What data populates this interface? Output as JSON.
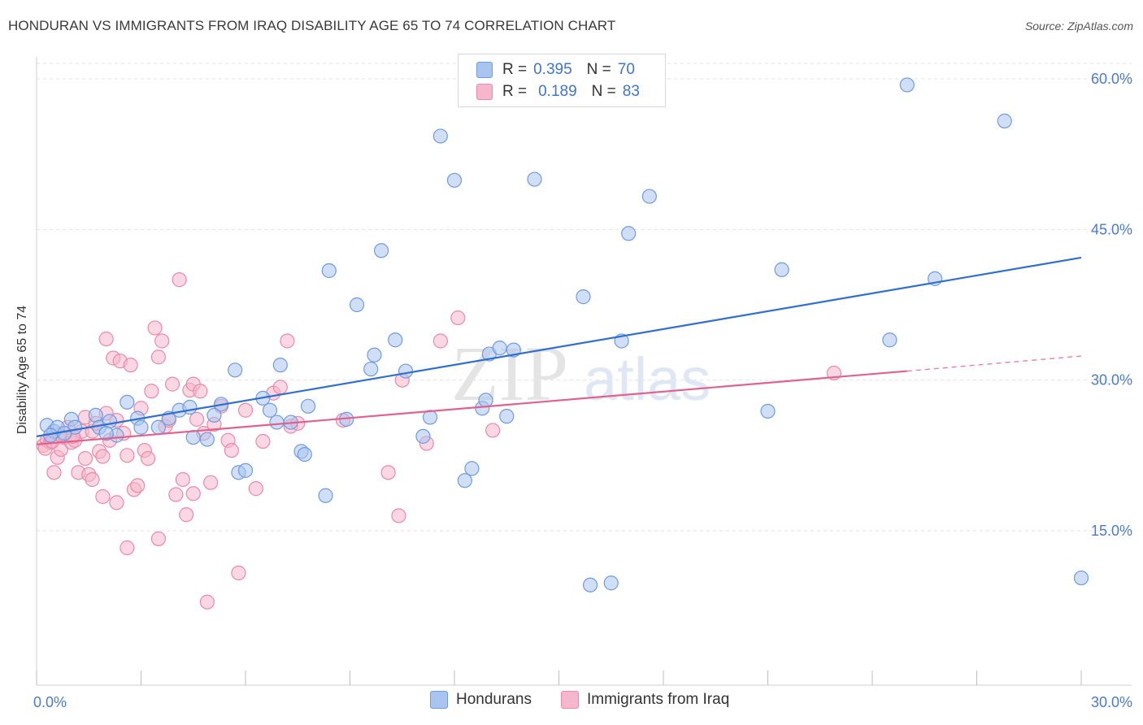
{
  "header": {
    "title": "HONDURAN VS IMMIGRANTS FROM IRAQ DISABILITY AGE 65 TO 74 CORRELATION CHART",
    "source": "Source: ZipAtlas.com"
  },
  "watermark": {
    "part1": "ZIP",
    "part2": "atlas"
  },
  "legend_top": {
    "rows": [
      {
        "r_label": "R =",
        "r_value": "0.395",
        "n_label": "N =",
        "n_value": "70"
      },
      {
        "r_label": "R =",
        "r_value": "0.189",
        "n_label": "N =",
        "n_value": "83"
      }
    ]
  },
  "legend_bottom": {
    "items": [
      {
        "label": "Hondurans"
      },
      {
        "label": "Immigrants from Iraq"
      }
    ]
  },
  "colors": {
    "hondurans_fill": "#a9c4ee",
    "hondurans_stroke": "#6f9be0",
    "hondurans_line": "#2f6fd0",
    "iraq_fill": "#f6b6cb",
    "iraq_stroke": "#e98aa9",
    "iraq_line": "#e0628f",
    "tick_text": "#4a7bd0",
    "grid": "#e2e2e2"
  },
  "chart_data": {
    "type": "scatter",
    "title": "HONDURAN VS IMMIGRANTS FROM IRAQ DISABILITY AGE 65 TO 74 CORRELATION CHART",
    "xlabel": "",
    "ylabel": "Disability Age 65 to 74",
    "xlim": [
      0,
      30
    ],
    "ylim": [
      0,
      63
    ],
    "x_tick_labels": [
      "0.0%",
      "30.0%"
    ],
    "y_ticks": [
      15,
      30,
      45,
      60
    ],
    "y_tick_labels": [
      "15.0%",
      "30.0%",
      "45.0%",
      "60.0%"
    ],
    "grid": true,
    "legend_position": "top-center",
    "series": [
      {
        "name": "Hondurans",
        "r": 0.395,
        "n": 70,
        "trend": {
          "x": [
            0,
            30
          ],
          "y": [
            24.4,
            42.2
          ],
          "dashed_from": null
        },
        "points": [
          [
            0.3,
            25.5
          ],
          [
            0.5,
            24.9
          ],
          [
            0.6,
            25.3
          ],
          [
            1.0,
            26.1
          ],
          [
            1.1,
            25.3
          ],
          [
            1.7,
            26.5
          ],
          [
            1.8,
            25.3
          ],
          [
            2.1,
            25.9
          ],
          [
            2.3,
            24.5
          ],
          [
            2.6,
            27.8
          ],
          [
            2.9,
            26.2
          ],
          [
            3.0,
            25.3
          ],
          [
            3.5,
            25.3
          ],
          [
            3.8,
            26.2
          ],
          [
            4.1,
            27.0
          ],
          [
            4.4,
            27.3
          ],
          [
            4.5,
            24.3
          ],
          [
            4.9,
            24.1
          ],
          [
            5.1,
            26.5
          ],
          [
            5.3,
            27.6
          ],
          [
            5.7,
            31.0
          ],
          [
            5.8,
            20.8
          ],
          [
            6.0,
            21.0
          ],
          [
            6.5,
            28.2
          ],
          [
            6.7,
            27.0
          ],
          [
            6.9,
            25.8
          ],
          [
            7.0,
            31.5
          ],
          [
            7.3,
            25.8
          ],
          [
            7.6,
            22.9
          ],
          [
            7.7,
            22.6
          ],
          [
            7.8,
            27.4
          ],
          [
            8.3,
            18.5
          ],
          [
            8.4,
            40.9
          ],
          [
            8.9,
            26.1
          ],
          [
            9.2,
            37.5
          ],
          [
            9.6,
            31.1
          ],
          [
            9.7,
            32.5
          ],
          [
            9.9,
            42.9
          ],
          [
            10.3,
            34.0
          ],
          [
            10.6,
            30.9
          ],
          [
            11.1,
            24.4
          ],
          [
            11.3,
            26.3
          ],
          [
            11.6,
            54.3
          ],
          [
            12.0,
            49.9
          ],
          [
            12.3,
            20.0
          ],
          [
            12.5,
            21.2
          ],
          [
            12.8,
            27.2
          ],
          [
            12.9,
            28.0
          ],
          [
            13.0,
            32.6
          ],
          [
            13.3,
            33.2
          ],
          [
            13.5,
            26.4
          ],
          [
            13.7,
            33.0
          ],
          [
            14.3,
            50.0
          ],
          [
            15.6,
            58.5
          ],
          [
            15.7,
            38.3
          ],
          [
            15.9,
            9.6
          ],
          [
            16.5,
            9.8
          ],
          [
            16.8,
            33.9
          ],
          [
            17.0,
            44.6
          ],
          [
            17.6,
            48.3
          ],
          [
            21.0,
            26.9
          ],
          [
            21.4,
            41.0
          ],
          [
            24.5,
            34.0
          ],
          [
            25.0,
            59.4
          ],
          [
            25.8,
            40.1
          ],
          [
            27.8,
            55.8
          ],
          [
            30.0,
            10.3
          ],
          [
            0.4,
            24.5
          ],
          [
            0.8,
            24.7
          ],
          [
            2.0,
            24.7
          ]
        ]
      },
      {
        "name": "Immigrants from Iraq",
        "r": 0.189,
        "n": 83,
        "trend": {
          "x": [
            0,
            25,
            30
          ],
          "y": [
            23.6,
            30.9,
            32.4
          ],
          "dashed_from": 25
        },
        "points": [
          [
            0.2,
            23.5
          ],
          [
            0.3,
            24.0
          ],
          [
            0.4,
            23.8
          ],
          [
            0.5,
            20.8
          ],
          [
            0.6,
            22.3
          ],
          [
            0.7,
            23.1
          ],
          [
            0.8,
            24.3
          ],
          [
            0.9,
            25.3
          ],
          [
            1.0,
            23.8
          ],
          [
            1.1,
            24.0
          ],
          [
            1.2,
            20.8
          ],
          [
            1.3,
            24.9
          ],
          [
            1.4,
            26.3
          ],
          [
            1.4,
            22.2
          ],
          [
            1.5,
            20.6
          ],
          [
            1.6,
            20.1
          ],
          [
            1.6,
            24.9
          ],
          [
            1.7,
            25.7
          ],
          [
            1.8,
            22.9
          ],
          [
            1.9,
            22.4
          ],
          [
            1.9,
            18.4
          ],
          [
            2.0,
            26.7
          ],
          [
            2.0,
            34.1
          ],
          [
            2.1,
            24.0
          ],
          [
            2.2,
            32.2
          ],
          [
            2.3,
            26.0
          ],
          [
            2.3,
            17.8
          ],
          [
            2.4,
            31.9
          ],
          [
            2.5,
            24.7
          ],
          [
            2.6,
            22.5
          ],
          [
            2.6,
            13.3
          ],
          [
            2.7,
            31.5
          ],
          [
            2.8,
            19.1
          ],
          [
            2.9,
            19.5
          ],
          [
            3.0,
            27.2
          ],
          [
            3.1,
            23.0
          ],
          [
            3.2,
            22.2
          ],
          [
            3.3,
            28.9
          ],
          [
            3.4,
            35.2
          ],
          [
            3.5,
            32.3
          ],
          [
            3.5,
            14.2
          ],
          [
            3.6,
            33.9
          ],
          [
            3.7,
            25.4
          ],
          [
            3.8,
            26.0
          ],
          [
            3.9,
            29.6
          ],
          [
            4.0,
            18.6
          ],
          [
            4.1,
            40.0
          ],
          [
            4.2,
            20.1
          ],
          [
            4.3,
            16.6
          ],
          [
            4.4,
            29.0
          ],
          [
            4.5,
            18.7
          ],
          [
            4.5,
            29.6
          ],
          [
            4.6,
            26.1
          ],
          [
            4.7,
            28.9
          ],
          [
            4.8,
            24.7
          ],
          [
            4.9,
            7.9
          ],
          [
            5.0,
            19.8
          ],
          [
            5.1,
            25.6
          ],
          [
            5.3,
            27.4
          ],
          [
            5.5,
            24.0
          ],
          [
            5.6,
            23.0
          ],
          [
            5.8,
            10.8
          ],
          [
            6.0,
            27.0
          ],
          [
            6.3,
            19.2
          ],
          [
            6.5,
            23.9
          ],
          [
            6.8,
            28.7
          ],
          [
            7.0,
            29.3
          ],
          [
            7.2,
            33.9
          ],
          [
            7.3,
            25.4
          ],
          [
            7.5,
            25.7
          ],
          [
            8.8,
            26.0
          ],
          [
            10.1,
            20.8
          ],
          [
            10.4,
            16.5
          ],
          [
            10.5,
            30.0
          ],
          [
            11.2,
            23.7
          ],
          [
            11.6,
            33.9
          ],
          [
            12.1,
            36.2
          ],
          [
            13.1,
            25.0
          ],
          [
            22.9,
            30.7
          ],
          [
            0.25,
            23.2
          ],
          [
            0.45,
            23.9
          ],
          [
            0.65,
            24.6
          ],
          [
            1.05,
            24.4
          ]
        ]
      }
    ]
  }
}
